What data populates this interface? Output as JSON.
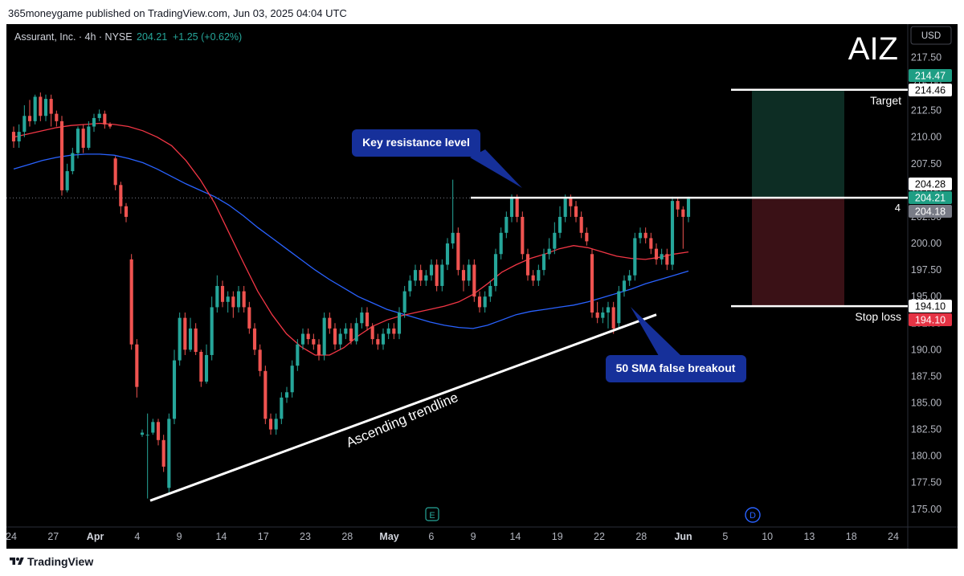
{
  "publish_line": "365moneygame published on TradingView.com, Jun 03, 2025 04:04 UTC",
  "footer_brand": "TradingView",
  "header": {
    "symbol_info": "Assurant, Inc. · 4h · NYSE",
    "last": "204.21",
    "change": "+1.25 (+0.62%)",
    "ticker": "AIZ",
    "currency": "USD"
  },
  "colors": {
    "up": "#26a69a",
    "down": "#ef5350",
    "sma_fast": "#f23645",
    "sma_slow": "#2962ff",
    "callout": "#16309a",
    "target_zone": "#0d2d24",
    "stop_zone": "#3a1116",
    "label_green": "#1e9e84",
    "label_red": "#e53344",
    "label_grey": "#787b86"
  },
  "annotations": {
    "callout_resistance": "Key resistance level",
    "callout_sma": "50 SMA false breakout",
    "trendline_label": "Ascending trendline",
    "target_label": "Target",
    "stop_label": "Stop loss",
    "count_label": "4",
    "event_e": "E",
    "event_d": "D"
  },
  "price_labels": [
    {
      "text": "214.47",
      "bg": "green"
    },
    {
      "text": "214.46",
      "bg": "white"
    },
    {
      "text": "204.28",
      "bg": "white"
    },
    {
      "text": "204.21",
      "bg": "green"
    },
    {
      "text": "204.18",
      "bg": "grey"
    },
    {
      "text": "194.10",
      "bg": "white"
    },
    {
      "text": "194.10",
      "bg": "red"
    }
  ],
  "chart_data": {
    "type": "candlestick",
    "y_axis": {
      "min": 174,
      "max": 218.5,
      "ticks": [
        "217.50",
        "215.00",
        "212.50",
        "210.00",
        "207.50",
        "205.00",
        "202.50",
        "200.00",
        "197.50",
        "195.00",
        "192.50",
        "190.00",
        "187.50",
        "185.00",
        "182.50",
        "180.00",
        "177.50",
        "175.00"
      ]
    },
    "x_axis_ticks": [
      "24",
      "27",
      "Apr",
      "4",
      "9",
      "14",
      "17",
      "23",
      "28",
      "May",
      "6",
      "9",
      "14",
      "19",
      "22",
      "28",
      "Jun",
      "5",
      "10",
      "13",
      "18",
      "24"
    ],
    "candles": [
      [
        210.5,
        209.6,
        211.0,
        209.0
      ],
      [
        209.6,
        210.5,
        211.2,
        209.0
      ],
      [
        210.5,
        212.0,
        213.0,
        210.0
      ],
      [
        212.0,
        211.5,
        213.5,
        211.0
      ],
      [
        211.5,
        213.8,
        214.0,
        211.2
      ],
      [
        213.8,
        212.0,
        214.2,
        211.5
      ],
      [
        212.0,
        213.6,
        214.0,
        211.5
      ],
      [
        213.6,
        212.2,
        214.0,
        211.0
      ],
      [
        212.2,
        211.5,
        212.5,
        211.0
      ],
      [
        211.5,
        205.0,
        212.0,
        204.5
      ],
      [
        205.0,
        206.8,
        207.5,
        204.8
      ],
      [
        206.8,
        208.5,
        209.0,
        206.5
      ],
      [
        208.5,
        210.8,
        211.0,
        208.0
      ],
      [
        210.8,
        209.0,
        211.2,
        208.5
      ],
      [
        209.0,
        211.0,
        211.5,
        208.8
      ],
      [
        211.0,
        211.8,
        212.2,
        210.5
      ],
      [
        211.8,
        212.2,
        212.6,
        211.5
      ],
      [
        212.2,
        211.2,
        212.5,
        210.8
      ],
      [
        211.2,
        211.0,
        211.4,
        210.8
      ],
      [
        208.0,
        205.5,
        208.2,
        205.0
      ],
      [
        205.5,
        203.5,
        205.8,
        202.8
      ],
      [
        203.5,
        202.5,
        203.8,
        202.0
      ],
      [
        198.5,
        190.5,
        199.0,
        190.0
      ],
      [
        190.5,
        186.5,
        191.0,
        185.5
      ],
      [
        182.0,
        182.2,
        182.5,
        181.8
      ],
      [
        182.0,
        182.0,
        184.0,
        176.0
      ],
      [
        182.2,
        183.2,
        183.5,
        182.0
      ],
      [
        183.2,
        181.5,
        183.5,
        181.0
      ],
      [
        181.5,
        179.0,
        182.0,
        178.5
      ],
      [
        177.0,
        183.5,
        184.0,
        176.5
      ],
      [
        183.5,
        189.0,
        190.0,
        183.0
      ],
      [
        189.0,
        193.0,
        193.5,
        188.5
      ],
      [
        193.0,
        190.0,
        193.5,
        189.5
      ],
      [
        190.0,
        192.0,
        193.0,
        189.8
      ],
      [
        192.0,
        189.8,
        192.5,
        189.5
      ],
      [
        189.8,
        187.0,
        190.0,
        186.5
      ],
      [
        187.0,
        189.5,
        190.5,
        186.8
      ],
      [
        189.5,
        194.0,
        195.0,
        189.0
      ],
      [
        194.0,
        196.0,
        197.0,
        193.5
      ],
      [
        196.0,
        194.5,
        196.5,
        194.0
      ],
      [
        194.5,
        195.0,
        195.5,
        193.5
      ],
      [
        195.0,
        194.0,
        195.5,
        193.0
      ],
      [
        194.0,
        195.5,
        196.0,
        193.5
      ],
      [
        195.5,
        194.0,
        196.0,
        193.5
      ],
      [
        194.0,
        192.0,
        194.5,
        191.5
      ],
      [
        192.0,
        190.0,
        192.5,
        189.5
      ],
      [
        190.0,
        188.0,
        190.5,
        187.5
      ],
      [
        188.0,
        183.5,
        188.5,
        183.0
      ],
      [
        183.5,
        182.5,
        184.0,
        182.0
      ],
      [
        182.5,
        183.5,
        184.0,
        182.0
      ],
      [
        183.5,
        185.5,
        186.0,
        183.0
      ],
      [
        185.5,
        186.0,
        186.5,
        185.0
      ],
      [
        186.0,
        188.5,
        189.0,
        185.5
      ],
      [
        188.5,
        190.5,
        191.0,
        188.0
      ],
      [
        190.5,
        191.5,
        192.0,
        190.0
      ],
      [
        191.5,
        191.0,
        192.0,
        190.5
      ],
      [
        191.0,
        190.5,
        191.5,
        190.0
      ],
      [
        190.5,
        189.5,
        191.0,
        189.0
      ],
      [
        189.5,
        193.0,
        193.5,
        189.0
      ],
      [
        193.0,
        192.0,
        193.5,
        191.5
      ],
      [
        192.0,
        190.5,
        192.5,
        190.0
      ],
      [
        190.5,
        191.5,
        192.0,
        190.0
      ],
      [
        191.5,
        192.0,
        192.5,
        191.0
      ],
      [
        192.0,
        190.8,
        192.5,
        190.5
      ],
      [
        190.8,
        192.5,
        193.0,
        190.5
      ],
      [
        192.5,
        193.5,
        194.0,
        192.0
      ],
      [
        193.5,
        192.2,
        194.0,
        191.8
      ],
      [
        192.2,
        191.0,
        192.5,
        190.5
      ],
      [
        191.0,
        190.5,
        191.5,
        190.0
      ],
      [
        190.5,
        191.5,
        192.0,
        190.0
      ],
      [
        191.5,
        192.0,
        192.5,
        191.0
      ],
      [
        192.0,
        191.5,
        192.5,
        191.0
      ],
      [
        191.5,
        193.5,
        194.0,
        191.0
      ],
      [
        193.5,
        195.5,
        196.0,
        193.0
      ],
      [
        195.5,
        196.5,
        197.0,
        195.0
      ],
      [
        196.5,
        197.5,
        198.0,
        196.0
      ],
      [
        197.5,
        196.5,
        198.0,
        196.0
      ],
      [
        196.5,
        197.0,
        197.5,
        196.0
      ],
      [
        197.0,
        198.0,
        198.5,
        196.5
      ],
      [
        198.0,
        196.0,
        198.5,
        195.5
      ],
      [
        196.0,
        198.0,
        198.5,
        195.5
      ],
      [
        198.0,
        200.0,
        200.5,
        197.5
      ],
      [
        200.0,
        201.0,
        206.0,
        199.5
      ],
      [
        201.0,
        197.5,
        201.5,
        197.0
      ],
      [
        197.5,
        196.5,
        198.0,
        195.5
      ],
      [
        196.5,
        198.0,
        198.5,
        196.0
      ],
      [
        198.0,
        195.0,
        198.5,
        194.5
      ],
      [
        195.0,
        194.0,
        195.5,
        193.5
      ],
      [
        194.0,
        195.0,
        195.5,
        193.5
      ],
      [
        195.0,
        196.0,
        196.5,
        194.5
      ],
      [
        196.0,
        199.0,
        199.5,
        195.5
      ],
      [
        199.0,
        201.0,
        201.5,
        198.5
      ],
      [
        201.0,
        202.5,
        203.0,
        200.5
      ],
      [
        202.5,
        204.3,
        204.6,
        202.0
      ],
      [
        204.3,
        202.5,
        204.6,
        202.0
      ],
      [
        202.5,
        199.0,
        203.0,
        198.5
      ],
      [
        199.0,
        197.0,
        199.5,
        196.5
      ],
      [
        197.0,
        196.5,
        197.5,
        196.0
      ],
      [
        196.5,
        197.5,
        198.0,
        196.0
      ],
      [
        197.5,
        199.0,
        199.5,
        197.0
      ],
      [
        199.0,
        199.5,
        200.5,
        198.5
      ],
      [
        199.5,
        201.0,
        202.0,
        199.0
      ],
      [
        201.0,
        202.5,
        203.5,
        200.5
      ],
      [
        202.5,
        204.3,
        204.6,
        202.0
      ],
      [
        204.3,
        203.5,
        204.6,
        202.5
      ],
      [
        203.5,
        202.5,
        204.0,
        202.0
      ],
      [
        202.5,
        201.0,
        203.0,
        200.5
      ],
      [
        201.0,
        200.2,
        201.5,
        199.8
      ],
      [
        199.0,
        193.5,
        199.5,
        193.0
      ],
      [
        193.5,
        193.0,
        194.5,
        192.5
      ],
      [
        193.0,
        193.5,
        194.0,
        192.5
      ],
      [
        193.5,
        194.0,
        194.5,
        192.0
      ],
      [
        194.0,
        192.0,
        194.5,
        191.5
      ],
      [
        192.5,
        195.5,
        196.0,
        192.0
      ],
      [
        195.5,
        196.5,
        197.0,
        195.0
      ],
      [
        196.5,
        197.0,
        197.5,
        196.0
      ],
      [
        197.0,
        200.5,
        201.0,
        196.5
      ],
      [
        200.5,
        201.0,
        201.5,
        200.0
      ],
      [
        201.0,
        200.5,
        201.5,
        200.0
      ],
      [
        200.5,
        199.5,
        201.0,
        199.0
      ],
      [
        199.5,
        198.5,
        200.0,
        198.0
      ],
      [
        198.5,
        199.0,
        199.5,
        198.0
      ],
      [
        199.0,
        198.0,
        199.5,
        197.5
      ],
      [
        198.0,
        204.0,
        204.4,
        197.5
      ],
      [
        204.0,
        203.2,
        204.3,
        202.5
      ],
      [
        203.2,
        202.5,
        203.5,
        199.5
      ],
      [
        202.5,
        204.2,
        204.4,
        202.0
      ]
    ],
    "sma_fast": [
      210.0,
      210.3,
      210.6,
      210.9,
      211.1,
      211.2,
      211.3,
      211.2,
      211.0,
      210.6,
      210.0,
      209.2,
      207.8,
      206.0,
      203.8,
      201.0,
      198.2,
      195.5,
      193.3,
      191.5,
      190.3,
      189.5,
      189.5,
      190.2,
      191.3,
      192.2,
      192.8,
      193.2,
      193.5,
      193.8,
      194.1,
      194.5,
      195.2,
      196.2,
      197.3,
      198.0,
      198.6,
      199.0,
      199.5,
      199.8,
      199.6,
      199.2,
      198.8,
      198.6,
      198.5,
      198.7,
      199.0,
      199.2
    ],
    "sma_slow": [
      207.0,
      207.4,
      207.8,
      208.1,
      208.3,
      208.4,
      208.4,
      208.3,
      208.0,
      207.6,
      207.0,
      206.3,
      205.6,
      205.0,
      204.4,
      203.6,
      202.6,
      201.5,
      200.5,
      199.5,
      198.5,
      197.5,
      196.6,
      195.8,
      195.0,
      194.4,
      193.8,
      193.4,
      193.0,
      192.6,
      192.3,
      192.1,
      192.0,
      192.3,
      192.8,
      193.3,
      193.6,
      193.8,
      194.0,
      194.2,
      194.5,
      194.9,
      195.3,
      195.7,
      196.2,
      196.6,
      197.0,
      197.4
    ],
    "trendline": {
      "from": [
        0,
        175.8
      ],
      "to": [
        1,
        193.3
      ]
    },
    "resistance": 204.3,
    "target": 214.46,
    "entry": 204.28,
    "stop": 194.1
  }
}
